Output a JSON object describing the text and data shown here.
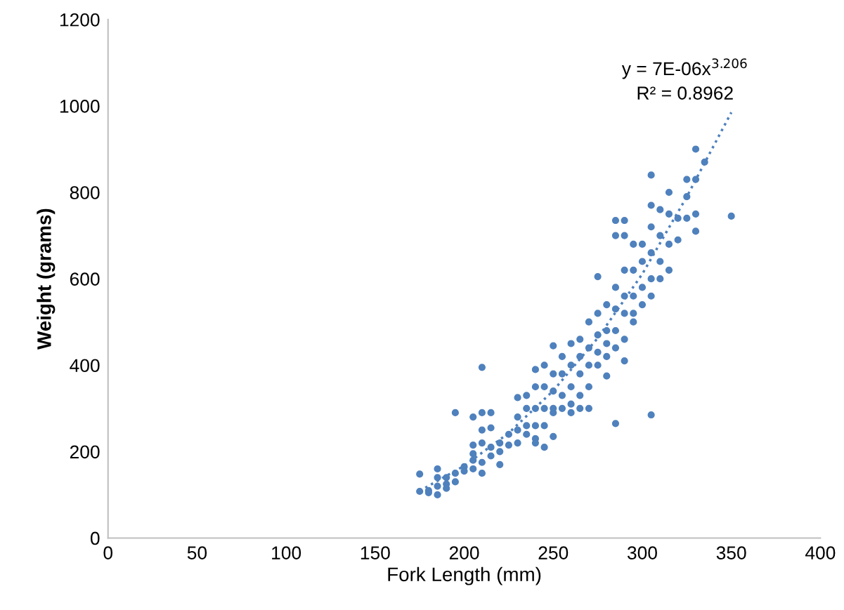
{
  "chart_data": {
    "type": "scatter",
    "xlabel": "Fork Length (mm)",
    "ylabel": "Weight (grams)",
    "xlim": [
      0,
      400
    ],
    "xticks": [
      0,
      50,
      100,
      150,
      200,
      250,
      300,
      350,
      400
    ],
    "ylim": [
      0,
      1200
    ],
    "yticks": [
      0,
      200,
      400,
      600,
      800,
      1000,
      1200
    ],
    "grid": false,
    "legend": false,
    "annotations": [
      "y = 7E-06x$^{3.206}$",
      "R² = 0.8962"
    ],
    "series": [
      {
        "color": "#4f81bd",
        "marker": "circle",
        "x": [
          175,
          175,
          180,
          180,
          185,
          185,
          185,
          185,
          190,
          190,
          190,
          195,
          195,
          195,
          200,
          200,
          205,
          205,
          205,
          205,
          205,
          210,
          210,
          210,
          210,
          210,
          210,
          215,
          215,
          215,
          215,
          220,
          220,
          220,
          225,
          225,
          230,
          230,
          230,
          230,
          235,
          235,
          235,
          235,
          240,
          240,
          240,
          240,
          240,
          240,
          245,
          245,
          245,
          245,
          245,
          250,
          250,
          250,
          250,
          250,
          250,
          255,
          255,
          255,
          255,
          260,
          260,
          260,
          260,
          260,
          265,
          265,
          265,
          265,
          265,
          270,
          270,
          270,
          270,
          270,
          275,
          275,
          275,
          275,
          275,
          280,
          280,
          280,
          280,
          280,
          285,
          285,
          285,
          285,
          285,
          285,
          285,
          290,
          290,
          290,
          290,
          290,
          290,
          290,
          295,
          295,
          295,
          295,
          295,
          300,
          300,
          300,
          300,
          305,
          305,
          305,
          305,
          305,
          305,
          305,
          310,
          310,
          310,
          310,
          315,
          315,
          315,
          315,
          320,
          320,
          325,
          325,
          325,
          330,
          330,
          330,
          330,
          335,
          350
        ],
        "values": [
          148,
          108,
          110,
          105,
          160,
          140,
          120,
          100,
          140,
          125,
          115,
          290,
          150,
          130,
          165,
          155,
          280,
          215,
          195,
          180,
          160,
          395,
          290,
          250,
          220,
          175,
          150,
          290,
          255,
          210,
          190,
          220,
          200,
          170,
          240,
          215,
          325,
          280,
          250,
          220,
          330,
          300,
          260,
          240,
          390,
          350,
          300,
          260,
          230,
          220,
          400,
          350,
          300,
          260,
          210,
          445,
          380,
          340,
          300,
          290,
          235,
          420,
          380,
          330,
          300,
          450,
          400,
          350,
          310,
          290,
          460,
          420,
          380,
          330,
          300,
          500,
          440,
          400,
          350,
          300,
          605,
          520,
          470,
          430,
          400,
          540,
          480,
          450,
          420,
          375,
          735,
          700,
          580,
          530,
          480,
          440,
          265,
          735,
          700,
          620,
          560,
          520,
          460,
          410,
          680,
          620,
          560,
          520,
          500,
          680,
          640,
          580,
          540,
          840,
          770,
          720,
          660,
          600,
          560,
          285,
          760,
          700,
          640,
          600,
          800,
          750,
          680,
          620,
          740,
          690,
          830,
          790,
          740,
          900,
          830,
          750,
          710,
          870,
          745
        ]
      },
      {
        "type": "line",
        "color": "#4f81bd",
        "line_style": "dotted",
        "marker": "none",
        "x": [
          175,
          200,
          225,
          250,
          275,
          300,
          325,
          350
        ],
        "values": [
          109,
          167,
          243,
          341,
          463,
          611,
          790,
          985
        ]
      }
    ]
  }
}
